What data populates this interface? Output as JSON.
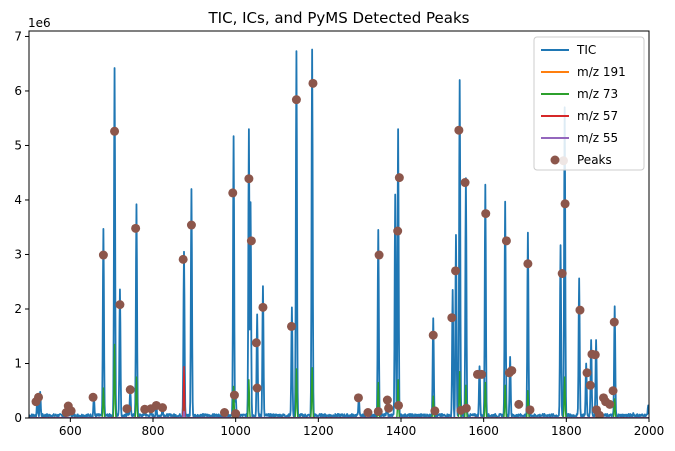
{
  "chart_data": {
    "type": "line",
    "title": "TIC, ICs, and PyMS Detected Peaks",
    "xlabel": "",
    "ylabel": "",
    "y_offset_label": "1e6",
    "xlim": [
      500,
      2000
    ],
    "ylim": [
      0,
      7100000
    ],
    "xticks": [
      600,
      800,
      1000,
      1200,
      1400,
      1600,
      1800,
      2000
    ],
    "yticks": [
      0,
      1,
      2,
      3,
      4,
      5,
      6,
      7
    ],
    "grid": false,
    "legend_position": "top-right",
    "series": [
      {
        "name": "TIC",
        "color": "#1f77b4",
        "peaks": [
          [
            520,
            320000
          ],
          [
            527,
            480000
          ],
          [
            592,
            220000
          ],
          [
            600,
            150000
          ],
          [
            657,
            380000
          ],
          [
            680,
            3470000
          ],
          [
            707,
            6420000
          ],
          [
            720,
            2360000
          ],
          [
            738,
            180000
          ],
          [
            745,
            520000
          ],
          [
            760,
            3920000
          ],
          [
            780,
            180000
          ],
          [
            795,
            170000
          ],
          [
            808,
            230000
          ],
          [
            823,
            190000
          ],
          [
            875,
            3050000
          ],
          [
            893,
            4200000
          ],
          [
            973,
            100000
          ],
          [
            995,
            5170000
          ],
          [
            1000,
            400000
          ],
          [
            1032,
            5300000
          ],
          [
            1036,
            3960000
          ],
          [
            1052,
            1900000
          ],
          [
            1066,
            2420000
          ],
          [
            1136,
            2030000
          ],
          [
            1147,
            6730000
          ],
          [
            1185,
            6760000
          ],
          [
            1298,
            370000
          ],
          [
            1345,
            3450000
          ],
          [
            1366,
            310000
          ],
          [
            1386,
            4100000
          ],
          [
            1393,
            5300000
          ],
          [
            1478,
            1830000
          ],
          [
            1525,
            2350000
          ],
          [
            1533,
            3360000
          ],
          [
            1542,
            6200000
          ],
          [
            1557,
            4400000
          ],
          [
            1590,
            950000
          ],
          [
            1604,
            4280000
          ],
          [
            1652,
            3970000
          ],
          [
            1664,
            1120000
          ],
          [
            1707,
            3400000
          ],
          [
            1786,
            3170000
          ],
          [
            1796,
            5700000
          ],
          [
            1831,
            2560000
          ],
          [
            1848,
            1000000
          ],
          [
            1860,
            1430000
          ],
          [
            1872,
            1430000
          ],
          [
            1917,
            2050000
          ],
          [
            1962,
            90000
          ],
          [
            1998,
            230000
          ]
        ]
      },
      {
        "name": "m/z 191",
        "color": "#ff7f0e",
        "peaks": []
      },
      {
        "name": "m/z 73",
        "color": "#2ca02c",
        "peaks": [
          [
            680,
            550000
          ],
          [
            707,
            1350000
          ],
          [
            760,
            750000
          ],
          [
            875,
            330000
          ],
          [
            995,
            580000
          ],
          [
            1032,
            700000
          ],
          [
            1147,
            900000
          ],
          [
            1185,
            920000
          ],
          [
            1345,
            650000
          ],
          [
            1393,
            700000
          ],
          [
            1478,
            400000
          ],
          [
            1542,
            850000
          ],
          [
            1557,
            600000
          ],
          [
            1604,
            650000
          ],
          [
            1652,
            600000
          ],
          [
            1707,
            500000
          ],
          [
            1796,
            750000
          ],
          [
            1917,
            350000
          ]
        ]
      },
      {
        "name": "m/z 57",
        "color": "#d62728",
        "peaks": [
          [
            875,
            940000
          ]
        ]
      },
      {
        "name": "m/z 55",
        "color": "#9467bd",
        "peaks": [
          [
            875,
            120000
          ]
        ]
      },
      {
        "name": "Peaks",
        "color": "#8c564b",
        "type": "scatter",
        "points": [
          [
            517,
            300000
          ],
          [
            523,
            380000
          ],
          [
            590,
            100000
          ],
          [
            595,
            220000
          ],
          [
            602,
            130000
          ],
          [
            655,
            380000
          ],
          [
            680,
            2990000
          ],
          [
            707,
            5260000
          ],
          [
            720,
            2080000
          ],
          [
            737,
            170000
          ],
          [
            745,
            520000
          ],
          [
            758,
            3480000
          ],
          [
            780,
            160000
          ],
          [
            795,
            170000
          ],
          [
            808,
            230000
          ],
          [
            823,
            190000
          ],
          [
            873,
            2910000
          ],
          [
            893,
            3540000
          ],
          [
            973,
            100000
          ],
          [
            993,
            4130000
          ],
          [
            997,
            420000
          ],
          [
            1000,
            80000
          ],
          [
            1032,
            4390000
          ],
          [
            1038,
            3250000
          ],
          [
            1050,
            1380000
          ],
          [
            1052,
            550000
          ],
          [
            1066,
            2030000
          ],
          [
            1135,
            1680000
          ],
          [
            1147,
            5840000
          ],
          [
            1187,
            6140000
          ],
          [
            1297,
            370000
          ],
          [
            1320,
            100000
          ],
          [
            1345,
            120000
          ],
          [
            1347,
            2990000
          ],
          [
            1367,
            330000
          ],
          [
            1370,
            180000
          ],
          [
            1392,
            3430000
          ],
          [
            1396,
            4410000
          ],
          [
            1394,
            230000
          ],
          [
            1478,
            1520000
          ],
          [
            1482,
            130000
          ],
          [
            1523,
            1840000
          ],
          [
            1532,
            2700000
          ],
          [
            1540,
            5280000
          ],
          [
            1545,
            140000
          ],
          [
            1555,
            4320000
          ],
          [
            1558,
            180000
          ],
          [
            1585,
            800000
          ],
          [
            1595,
            800000
          ],
          [
            1605,
            3750000
          ],
          [
            1655,
            3250000
          ],
          [
            1662,
            830000
          ],
          [
            1668,
            870000
          ],
          [
            1685,
            250000
          ],
          [
            1707,
            2830000
          ],
          [
            1712,
            150000
          ],
          [
            1790,
            2650000
          ],
          [
            1793,
            4720000
          ],
          [
            1797,
            3930000
          ],
          [
            1833,
            1980000
          ],
          [
            1850,
            830000
          ],
          [
            1858,
            600000
          ],
          [
            1862,
            1170000
          ],
          [
            1870,
            1160000
          ],
          [
            1873,
            150000
          ],
          [
            1880,
            50000
          ],
          [
            1890,
            370000
          ],
          [
            1895,
            300000
          ],
          [
            1905,
            250000
          ],
          [
            1913,
            500000
          ],
          [
            1916,
            1760000
          ]
        ]
      }
    ]
  }
}
